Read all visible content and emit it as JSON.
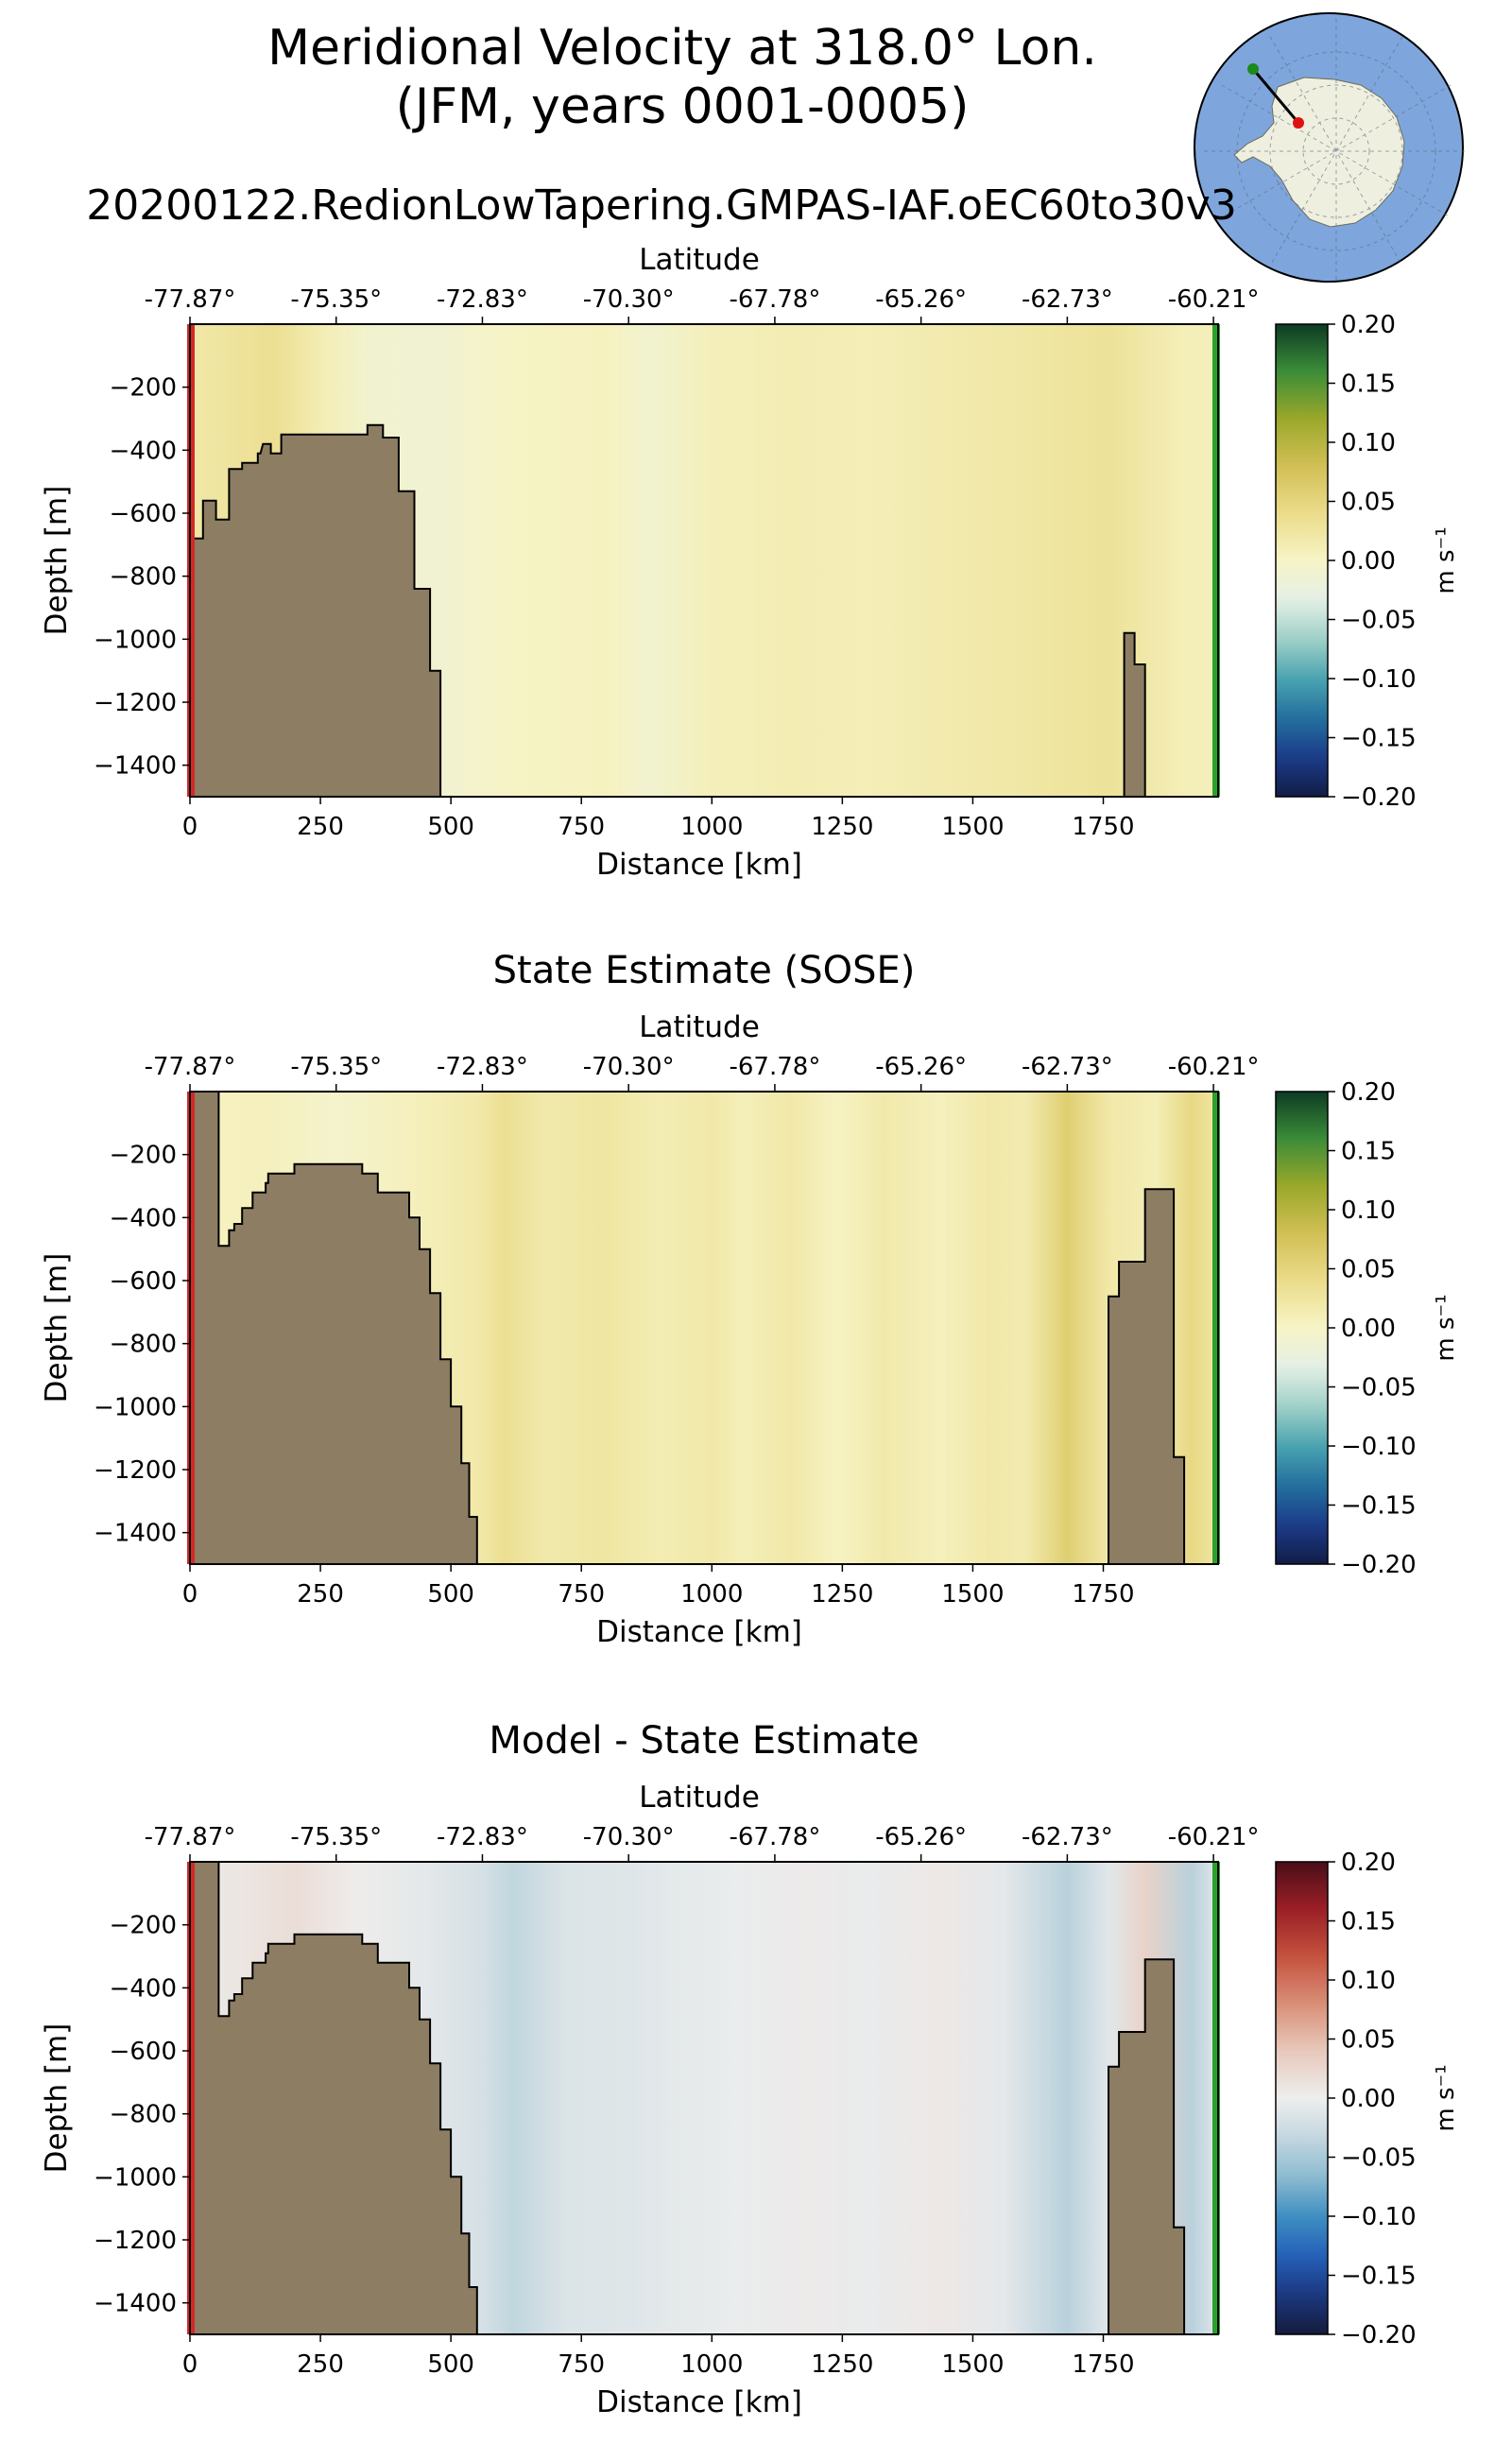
{
  "page_title": {
    "line1": "Meridional Velocity at 318.0° Lon.",
    "line2": "(JFM, years 0001-0005)"
  },
  "colors": {
    "land": "#8C7D63",
    "start_line": "#d62728",
    "end_line": "#2ca02c",
    "inset_ocean": "#7ea6dc",
    "inset_land": "#efefdf",
    "inset_start_dot": "#1a8a1a",
    "inset_end_dot": "#e11111"
  },
  "inset_map": {
    "name": "antarctica-inset-map",
    "section_line": "transect-line"
  },
  "colorbars": {
    "velocity": {
      "unit": "m s⁻¹",
      "ticks": [
        "0.20",
        "0.15",
        "0.10",
        "0.05",
        "0.00",
        "−0.05",
        "−0.10",
        "−0.15",
        "−0.20"
      ],
      "stops": [
        "#f3f0b0",
        "#e6d57a",
        "#c7b44a",
        "#8aa52a",
        "#2f8a3a",
        "#0c3b24"
      ],
      "neg_stops": [
        "#eef3ec",
        "#9fd0c8",
        "#4aa3b0",
        "#23709e",
        "#1c3c8a",
        "#111c45"
      ]
    },
    "difference": {
      "unit": "m s⁻¹",
      "ticks": [
        "0.20",
        "0.15",
        "0.10",
        "0.05",
        "0.00",
        "−0.05",
        "−0.10",
        "−0.15",
        "−0.20"
      ]
    }
  },
  "chart_data": [
    {
      "type": "heatmap",
      "title": "20200122.RedionLowTapering.GMPAS-IAF.oEC60to30v3",
      "xlabel": "Distance [km]",
      "ylabel": "Depth [m]",
      "top_xlabel": "Latitude",
      "xlim": [
        0,
        1970
      ],
      "ylim": [
        -1500,
        0
      ],
      "xticks": [
        "0",
        "250",
        "500",
        "750",
        "1000",
        "1250",
        "1500",
        "1750"
      ],
      "yticks": [
        "−200",
        "−400",
        "−600",
        "−800",
        "−1000",
        "−1200",
        "−1400"
      ],
      "lat_ticks": [
        "-77.87°",
        "-75.35°",
        "-72.83°",
        "-70.30°",
        "-67.78°",
        "-65.26°",
        "-62.73°",
        "-60.21°"
      ],
      "colorbar": "velocity",
      "columns": [
        {
          "x": 0,
          "v": 0.02
        },
        {
          "x": 60,
          "v": 0.025
        },
        {
          "x": 160,
          "v": 0.035
        },
        {
          "x": 260,
          "v": 0.01
        },
        {
          "x": 350,
          "v": -0.01
        },
        {
          "x": 480,
          "v": -0.012
        },
        {
          "x": 560,
          "v": -0.004
        },
        {
          "x": 650,
          "v": 0.002
        },
        {
          "x": 800,
          "v": 0.004
        },
        {
          "x": 880,
          "v": -0.01
        },
        {
          "x": 1000,
          "v": 0.008
        },
        {
          "x": 1150,
          "v": 0.012
        },
        {
          "x": 1300,
          "v": 0.01
        },
        {
          "x": 1450,
          "v": 0.016
        },
        {
          "x": 1600,
          "v": 0.022
        },
        {
          "x": 1760,
          "v": 0.03
        },
        {
          "x": 1900,
          "v": 0.01
        },
        {
          "x": 1970,
          "v": 0.008
        }
      ],
      "bathymetry": [
        [
          0,
          -680
        ],
        [
          25,
          -680
        ],
        [
          25,
          -560
        ],
        [
          50,
          -560
        ],
        [
          50,
          -620
        ],
        [
          75,
          -620
        ],
        [
          75,
          -460
        ],
        [
          100,
          -460
        ],
        [
          100,
          -440
        ],
        [
          125,
          -440
        ],
        [
          130,
          -440
        ],
        [
          130,
          -410
        ],
        [
          135,
          -410
        ],
        [
          140,
          -380
        ],
        [
          155,
          -380
        ],
        [
          155,
          -410
        ],
        [
          175,
          -410
        ],
        [
          175,
          -350
        ],
        [
          340,
          -350
        ],
        [
          340,
          -320
        ],
        [
          370,
          -320
        ],
        [
          370,
          -360
        ],
        [
          400,
          -360
        ],
        [
          400,
          -530
        ],
        [
          430,
          -530
        ],
        [
          430,
          -840
        ],
        [
          460,
          -840
        ],
        [
          460,
          -1100
        ],
        [
          480,
          -1100
        ],
        [
          480,
          -1500
        ],
        [
          0,
          -1500
        ]
      ],
      "seamount": [
        [
          1790,
          -1500
        ],
        [
          1790,
          -980
        ],
        [
          1810,
          -980
        ],
        [
          1810,
          -1080
        ],
        [
          1830,
          -1080
        ],
        [
          1830,
          -1500
        ]
      ]
    },
    {
      "type": "heatmap",
      "title": "State Estimate (SOSE)",
      "xlabel": "Distance [km]",
      "ylabel": "Depth [m]",
      "top_xlabel": "Latitude",
      "xlim": [
        0,
        1970
      ],
      "ylim": [
        -1500,
        0
      ],
      "xticks": [
        "0",
        "250",
        "500",
        "750",
        "1000",
        "1250",
        "1500",
        "1750"
      ],
      "yticks": [
        "−200",
        "−400",
        "−600",
        "−800",
        "−1000",
        "−1200",
        "−1400"
      ],
      "lat_ticks": [
        "-77.87°",
        "-75.35°",
        "-72.83°",
        "-70.30°",
        "-67.78°",
        "-65.26°",
        "-62.73°",
        "-60.21°"
      ],
      "colorbar": "velocity",
      "columns": [
        {
          "x": 0,
          "v": 0.004
        },
        {
          "x": 150,
          "v": 0.006
        },
        {
          "x": 280,
          "v": -0.006
        },
        {
          "x": 420,
          "v": 0.006
        },
        {
          "x": 560,
          "v": 0.02
        },
        {
          "x": 600,
          "v": 0.035
        },
        {
          "x": 680,
          "v": 0.018
        },
        {
          "x": 800,
          "v": 0.024
        },
        {
          "x": 900,
          "v": 0.012
        },
        {
          "x": 1000,
          "v": 0.02
        },
        {
          "x": 1060,
          "v": 0.008
        },
        {
          "x": 1150,
          "v": 0.02
        },
        {
          "x": 1240,
          "v": 0.002
        },
        {
          "x": 1330,
          "v": 0.018
        },
        {
          "x": 1440,
          "v": 0.006
        },
        {
          "x": 1530,
          "v": 0.02
        },
        {
          "x": 1600,
          "v": 0.015
        },
        {
          "x": 1680,
          "v": 0.058
        },
        {
          "x": 1760,
          "v": 0.02
        },
        {
          "x": 1850,
          "v": 0.01
        },
        {
          "x": 1920,
          "v": 0.045
        },
        {
          "x": 1970,
          "v": 0.02
        }
      ],
      "bathymetry": [
        [
          0,
          -1500
        ],
        [
          0,
          0
        ],
        [
          55,
          0
        ],
        [
          55,
          -490
        ],
        [
          75,
          -490
        ],
        [
          75,
          -440
        ],
        [
          85,
          -440
        ],
        [
          85,
          -420
        ],
        [
          100,
          -420
        ],
        [
          100,
          -370
        ],
        [
          120,
          -370
        ],
        [
          120,
          -320
        ],
        [
          145,
          -320
        ],
        [
          145,
          -290
        ],
        [
          150,
          -290
        ],
        [
          150,
          -260
        ],
        [
          200,
          -260
        ],
        [
          200,
          -230
        ],
        [
          330,
          -230
        ],
        [
          330,
          -260
        ],
        [
          360,
          -260
        ],
        [
          360,
          -320
        ],
        [
          420,
          -320
        ],
        [
          420,
          -400
        ],
        [
          440,
          -400
        ],
        [
          440,
          -500
        ],
        [
          460,
          -500
        ],
        [
          460,
          -640
        ],
        [
          480,
          -640
        ],
        [
          480,
          -850
        ],
        [
          500,
          -850
        ],
        [
          500,
          -1000
        ],
        [
          520,
          -1000
        ],
        [
          520,
          -1180
        ],
        [
          535,
          -1180
        ],
        [
          535,
          -1350
        ],
        [
          550,
          -1350
        ],
        [
          550,
          -1500
        ]
      ],
      "seamount": [
        [
          1760,
          -1500
        ],
        [
          1760,
          -650
        ],
        [
          1780,
          -650
        ],
        [
          1780,
          -540
        ],
        [
          1830,
          -540
        ],
        [
          1830,
          -310
        ],
        [
          1885,
          -310
        ],
        [
          1885,
          -1160
        ],
        [
          1905,
          -1160
        ],
        [
          1905,
          -1500
        ]
      ]
    },
    {
      "type": "heatmap",
      "title": "Model - State Estimate",
      "xlabel": "Distance [km]",
      "ylabel": "Depth [m]",
      "top_xlabel": "Latitude",
      "xlim": [
        0,
        1970
      ],
      "ylim": [
        -1500,
        0
      ],
      "xticks": [
        "0",
        "250",
        "500",
        "750",
        "1000",
        "1250",
        "1500",
        "1750"
      ],
      "yticks": [
        "−200",
        "−400",
        "−600",
        "−800",
        "−1000",
        "−1200",
        "−1400"
      ],
      "lat_ticks": [
        "-77.87°",
        "-75.35°",
        "-72.83°",
        "-70.30°",
        "-67.78°",
        "-65.26°",
        "-62.73°",
        "-60.21°"
      ],
      "colorbar": "difference",
      "columns": [
        {
          "x": 0,
          "v": 0.005
        },
        {
          "x": 100,
          "v": 0.01
        },
        {
          "x": 200,
          "v": 0.018
        },
        {
          "x": 320,
          "v": 0.002
        },
        {
          "x": 450,
          "v": -0.008
        },
        {
          "x": 560,
          "v": -0.02
        },
        {
          "x": 620,
          "v": -0.035
        },
        {
          "x": 720,
          "v": -0.015
        },
        {
          "x": 850,
          "v": -0.012
        },
        {
          "x": 950,
          "v": -0.006
        },
        {
          "x": 1050,
          "v": -0.003
        },
        {
          "x": 1200,
          "v": 0.004
        },
        {
          "x": 1300,
          "v": -0.004
        },
        {
          "x": 1440,
          "v": 0.006
        },
        {
          "x": 1560,
          "v": -0.008
        },
        {
          "x": 1680,
          "v": -0.04
        },
        {
          "x": 1760,
          "v": -0.01
        },
        {
          "x": 1830,
          "v": 0.03
        },
        {
          "x": 1920,
          "v": -0.04
        },
        {
          "x": 1970,
          "v": -0.01
        }
      ],
      "bathymetry": [
        [
          0,
          -1500
        ],
        [
          0,
          0
        ],
        [
          55,
          0
        ],
        [
          55,
          -490
        ],
        [
          75,
          -490
        ],
        [
          75,
          -440
        ],
        [
          85,
          -440
        ],
        [
          85,
          -420
        ],
        [
          100,
          -420
        ],
        [
          100,
          -370
        ],
        [
          120,
          -370
        ],
        [
          120,
          -320
        ],
        [
          145,
          -320
        ],
        [
          145,
          -290
        ],
        [
          150,
          -290
        ],
        [
          150,
          -260
        ],
        [
          200,
          -260
        ],
        [
          200,
          -230
        ],
        [
          330,
          -230
        ],
        [
          330,
          -260
        ],
        [
          360,
          -260
        ],
        [
          360,
          -320
        ],
        [
          420,
          -320
        ],
        [
          420,
          -400
        ],
        [
          440,
          -400
        ],
        [
          440,
          -500
        ],
        [
          460,
          -500
        ],
        [
          460,
          -640
        ],
        [
          480,
          -640
        ],
        [
          480,
          -850
        ],
        [
          500,
          -850
        ],
        [
          500,
          -1000
        ],
        [
          520,
          -1000
        ],
        [
          520,
          -1180
        ],
        [
          535,
          -1180
        ],
        [
          535,
          -1350
        ],
        [
          550,
          -1350
        ],
        [
          550,
          -1500
        ]
      ],
      "seamount": [
        [
          1760,
          -1500
        ],
        [
          1760,
          -650
        ],
        [
          1780,
          -650
        ],
        [
          1780,
          -540
        ],
        [
          1830,
          -540
        ],
        [
          1830,
          -310
        ],
        [
          1885,
          -310
        ],
        [
          1885,
          -1160
        ],
        [
          1905,
          -1160
        ],
        [
          1905,
          -1500
        ]
      ]
    }
  ]
}
